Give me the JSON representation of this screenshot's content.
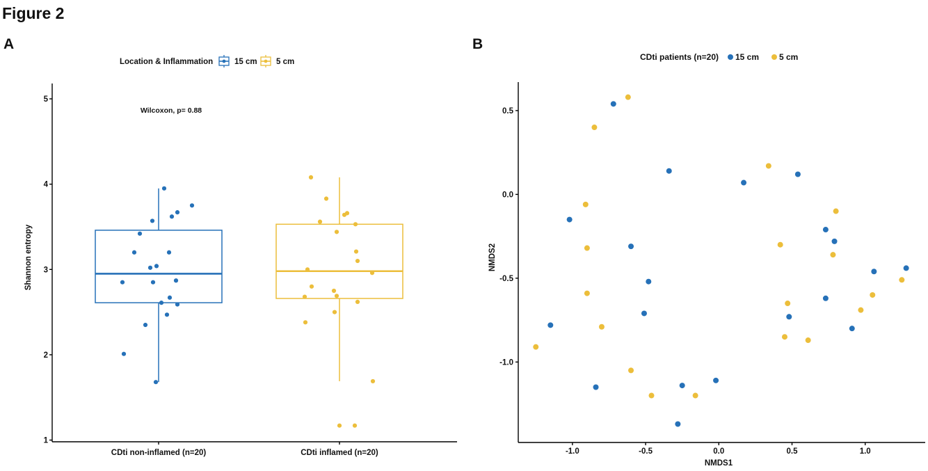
{
  "figure_title": "Figure 2",
  "chart_data": [
    {
      "panel_label": "A",
      "type": "box",
      "legend": {
        "title": "Location & Inflammation",
        "position": "top"
      },
      "ylabel": "Shannon entropy",
      "ylim": [
        0.98,
        5.18
      ],
      "grid": false,
      "y_ticks": [
        {
          "value": 1,
          "label": "1"
        },
        {
          "value": 2,
          "label": "2"
        },
        {
          "value": 3,
          "label": "3"
        },
        {
          "value": 4,
          "label": "4"
        },
        {
          "value": 5,
          "label": "5"
        }
      ],
      "categories": [
        "CDti non-inflamed (n=20)",
        "CDti inflamed (n=20)"
      ],
      "annotation": "Wilcoxon, p= 0.88",
      "series": [
        {
          "name": "15 cm",
          "color": "#2671B8",
          "box": {
            "whisker_low": 1.68,
            "q1": 2.61,
            "median": 2.95,
            "q3": 3.46,
            "whisker_high": 3.95
          },
          "outliers": [],
          "values": [
            3.95,
            3.75,
            3.67,
            3.62,
            3.57,
            3.42,
            3.2,
            3.2,
            3.04,
            3.02,
            2.85,
            2.87,
            2.85,
            2.67,
            2.61,
            2.59,
            2.47,
            2.35,
            2.01,
            1.68
          ]
        },
        {
          "name": "5 cm",
          "color": "#ECBE3B",
          "box": {
            "whisker_low": 1.69,
            "q1": 2.66,
            "median": 2.98,
            "q3": 3.53,
            "whisker_high": 4.08
          },
          "outliers": [
            1.17
          ],
          "values": [
            4.08,
            3.83,
            3.66,
            3.64,
            3.56,
            3.53,
            3.44,
            3.21,
            3.1,
            3.0,
            2.96,
            2.8,
            2.75,
            2.69,
            2.68,
            2.62,
            2.5,
            2.38,
            1.69,
            1.17
          ]
        }
      ]
    },
    {
      "panel_label": "B",
      "type": "scatter",
      "legend": {
        "title": "CDti patients (n=20)",
        "position": "top"
      },
      "xlabel": "NMDS1",
      "ylabel": "NMDS2",
      "xlim": [
        -1.37,
        1.41
      ],
      "ylim": [
        -1.48,
        0.67
      ],
      "grid": false,
      "x_ticks": [
        {
          "value": -1.0,
          "label": "-1.0"
        },
        {
          "value": -0.5,
          "label": "-0.5"
        },
        {
          "value": 0.0,
          "label": "0.0"
        },
        {
          "value": 0.5,
          "label": "0.5"
        },
        {
          "value": 1.0,
          "label": "1.0"
        }
      ],
      "y_ticks": [
        {
          "value": -1.0,
          "label": "-1.0"
        },
        {
          "value": -0.5,
          "label": "-0.5"
        },
        {
          "value": 0.0,
          "label": "0.0"
        },
        {
          "value": 0.5,
          "label": "0.5"
        }
      ],
      "series": [
        {
          "name": "15 cm",
          "color": "#2671B8",
          "points": [
            {
              "x": -0.72,
              "y": 0.54
            },
            {
              "x": -0.34,
              "y": 0.14
            },
            {
              "x": 0.54,
              "y": 0.12
            },
            {
              "x": 0.17,
              "y": 0.07
            },
            {
              "x": -1.02,
              "y": -0.15
            },
            {
              "x": 0.73,
              "y": -0.21
            },
            {
              "x": 0.79,
              "y": -0.28
            },
            {
              "x": -0.6,
              "y": -0.31
            },
            {
              "x": 1.28,
              "y": -0.44
            },
            {
              "x": 1.06,
              "y": -0.46
            },
            {
              "x": -0.48,
              "y": -0.52
            },
            {
              "x": 0.73,
              "y": -0.62
            },
            {
              "x": -0.51,
              "y": -0.71
            },
            {
              "x": 0.48,
              "y": -0.73
            },
            {
              "x": -1.15,
              "y": -0.78
            },
            {
              "x": 0.91,
              "y": -0.8
            },
            {
              "x": -0.02,
              "y": -1.11
            },
            {
              "x": -0.25,
              "y": -1.14
            },
            {
              "x": -0.84,
              "y": -1.15
            },
            {
              "x": -0.28,
              "y": -1.37
            }
          ]
        },
        {
          "name": "5 cm",
          "color": "#ECBE3B",
          "points": [
            {
              "x": -0.62,
              "y": 0.58
            },
            {
              "x": -0.85,
              "y": 0.4
            },
            {
              "x": 0.34,
              "y": 0.17
            },
            {
              "x": -0.91,
              "y": -0.06
            },
            {
              "x": 0.8,
              "y": -0.1
            },
            {
              "x": 0.42,
              "y": -0.3
            },
            {
              "x": -0.9,
              "y": -0.32
            },
            {
              "x": 0.78,
              "y": -0.36
            },
            {
              "x": 1.25,
              "y": -0.51
            },
            {
              "x": -0.9,
              "y": -0.59
            },
            {
              "x": 1.05,
              "y": -0.6
            },
            {
              "x": 0.47,
              "y": -0.65
            },
            {
              "x": 0.97,
              "y": -0.69
            },
            {
              "x": -0.8,
              "y": -0.79
            },
            {
              "x": 0.45,
              "y": -0.85
            },
            {
              "x": 0.61,
              "y": -0.87
            },
            {
              "x": -1.25,
              "y": -0.91
            },
            {
              "x": -0.6,
              "y": -1.05
            },
            {
              "x": -0.16,
              "y": -1.2
            },
            {
              "x": -0.46,
              "y": -1.2
            }
          ]
        }
      ]
    }
  ]
}
